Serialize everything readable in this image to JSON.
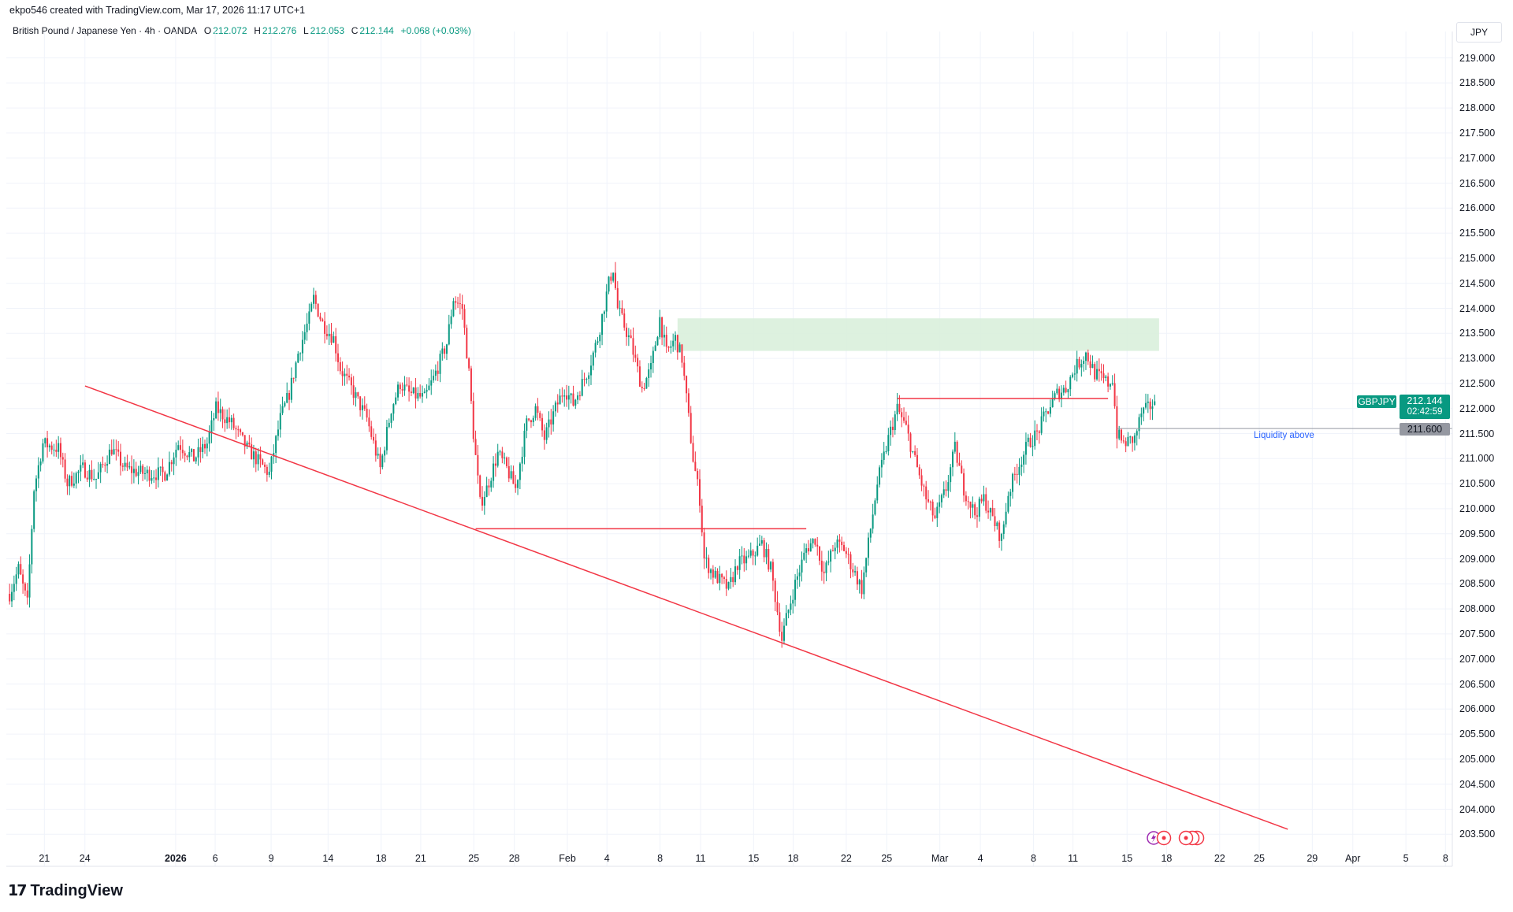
{
  "credit": "ekpo546 created with TradingView.com, Mar 17, 2026 11:17 UTC+1",
  "legend": {
    "symbol_desc": "British Pound / Japanese Yen · 4h · OANDA",
    "o_label": "O",
    "o": "212.072",
    "h_label": "H",
    "h": "212.276",
    "l_label": "L",
    "l": "212.053",
    "c_label": "C",
    "c": "212.144",
    "change": "+0.068 (+0.03%)"
  },
  "currency_button": "JPY",
  "price_axis": [
    "219.000",
    "218.500",
    "218.000",
    "217.500",
    "217.000",
    "216.500",
    "216.000",
    "215.500",
    "215.000",
    "214.500",
    "214.000",
    "213.500",
    "213.000",
    "212.500",
    "212.000",
    "211.500",
    "211.000",
    "210.500",
    "210.000",
    "209.500",
    "209.000",
    "208.500",
    "208.000",
    "207.500",
    "207.000",
    "206.500",
    "206.000",
    "205.500",
    "205.000",
    "204.500",
    "204.000",
    "203.500"
  ],
  "time_axis": [
    {
      "label": "21"
    },
    {
      "label": "24"
    },
    {
      "label": "2026",
      "bold": true
    },
    {
      "label": "6"
    },
    {
      "label": "9"
    },
    {
      "label": "14"
    },
    {
      "label": "18"
    },
    {
      "label": "21"
    },
    {
      "label": "25"
    },
    {
      "label": "28"
    },
    {
      "label": "Feb"
    },
    {
      "label": "4"
    },
    {
      "label": "8"
    },
    {
      "label": "11"
    },
    {
      "label": "15"
    },
    {
      "label": "18"
    },
    {
      "label": "22"
    },
    {
      "label": "25"
    },
    {
      "label": "Mar"
    },
    {
      "label": "4"
    },
    {
      "label": "8"
    },
    {
      "label": "11"
    },
    {
      "label": "15"
    },
    {
      "label": "18"
    },
    {
      "label": "22"
    },
    {
      "label": "25"
    },
    {
      "label": "29"
    },
    {
      "label": "Apr"
    },
    {
      "label": "5"
    },
    {
      "label": "8"
    }
  ],
  "symbol_badge": "GBPJPY",
  "last_price": "212.144",
  "countdown": "02:42:59",
  "liquidity_price": "211.600",
  "liquidity_text": "Liquidity above",
  "brand": "TradingView",
  "colors": {
    "up": "#089981",
    "down": "#f23645",
    "drawing": "#f23645",
    "zone": "#d9efdc",
    "liquidity_line": "#9598a1",
    "accent": "#2962ff"
  },
  "chart_data": {
    "type": "candlestick",
    "title": "British Pound / Japanese Yen · 4h · OANDA",
    "ylim": [
      203.3,
      219.3
    ],
    "bar_count": 517,
    "last_candle": {
      "o": 212.072,
      "h": 212.276,
      "l": 212.053,
      "c": 212.144
    },
    "close_anchors": [
      [
        0,
        208.3
      ],
      [
        4,
        208.8
      ],
      [
        8,
        208.1
      ],
      [
        11,
        210.4
      ],
      [
        15,
        211.3
      ],
      [
        22,
        211.2
      ],
      [
        26,
        210.5
      ],
      [
        33,
        210.8
      ],
      [
        39,
        210.6
      ],
      [
        46,
        211.2
      ],
      [
        52,
        210.8
      ],
      [
        61,
        210.7
      ],
      [
        70,
        210.7
      ],
      [
        76,
        211.3
      ],
      [
        83,
        211.0
      ],
      [
        89,
        211.3
      ],
      [
        93,
        212.0
      ],
      [
        100,
        211.7
      ],
      [
        107,
        211.2
      ],
      [
        113,
        210.9
      ],
      [
        117,
        210.7
      ],
      [
        122,
        211.8
      ],
      [
        126,
        212.3
      ],
      [
        130,
        213.1
      ],
      [
        135,
        213.8
      ],
      [
        137,
        214.2
      ],
      [
        141,
        213.7
      ],
      [
        146,
        213.4
      ],
      [
        149,
        212.8
      ],
      [
        154,
        212.4
      ],
      [
        161,
        211.8
      ],
      [
        167,
        210.8
      ],
      [
        172,
        212.0
      ],
      [
        176,
        212.5
      ],
      [
        180,
        212.3
      ],
      [
        187,
        212.2
      ],
      [
        191,
        212.6
      ],
      [
        197,
        213.3
      ],
      [
        200,
        214.2
      ],
      [
        204,
        214.0
      ],
      [
        207,
        212.7
      ],
      [
        209,
        211.5
      ],
      [
        212,
        210.1
      ],
      [
        215,
        210.4
      ],
      [
        220,
        211.1
      ],
      [
        224,
        210.8
      ],
      [
        228,
        210.4
      ],
      [
        233,
        211.7
      ],
      [
        237,
        212.0
      ],
      [
        241,
        211.4
      ],
      [
        246,
        212.0
      ],
      [
        250,
        212.4
      ],
      [
        254,
        212.1
      ],
      [
        261,
        212.8
      ],
      [
        265,
        213.4
      ],
      [
        270,
        214.5
      ],
      [
        272,
        214.8
      ],
      [
        274,
        214.0
      ],
      [
        280,
        213.3
      ],
      [
        285,
        212.4
      ],
      [
        289,
        212.8
      ],
      [
        293,
        213.8
      ],
      [
        296,
        213.1
      ],
      [
        300,
        213.4
      ],
      [
        303,
        213.0
      ],
      [
        305,
        212.2
      ],
      [
        308,
        211.0
      ],
      [
        311,
        210.2
      ],
      [
        313,
        209.0
      ],
      [
        317,
        208.7
      ],
      [
        324,
        208.4
      ],
      [
        328,
        208.9
      ],
      [
        333,
        209.0
      ],
      [
        339,
        209.3
      ],
      [
        343,
        208.8
      ],
      [
        348,
        207.4
      ],
      [
        350,
        207.8
      ],
      [
        354,
        208.5
      ],
      [
        359,
        209.2
      ],
      [
        363,
        209.4
      ],
      [
        367,
        208.7
      ],
      [
        372,
        209.3
      ],
      [
        376,
        209.2
      ],
      [
        380,
        208.8
      ],
      [
        384,
        208.4
      ],
      [
        387,
        209.3
      ],
      [
        391,
        210.5
      ],
      [
        396,
        211.4
      ],
      [
        400,
        212.0
      ],
      [
        404,
        211.6
      ],
      [
        409,
        210.8
      ],
      [
        413,
        210.2
      ],
      [
        417,
        209.8
      ],
      [
        422,
        210.4
      ],
      [
        426,
        211.2
      ],
      [
        430,
        210.4
      ],
      [
        435,
        209.9
      ],
      [
        439,
        210.2
      ],
      [
        443,
        209.8
      ],
      [
        447,
        209.4
      ],
      [
        450,
        210.3
      ],
      [
        454,
        210.8
      ],
      [
        459,
        211.3
      ],
      [
        463,
        211.5
      ],
      [
        467,
        211.9
      ],
      [
        472,
        212.3
      ],
      [
        476,
        212.4
      ],
      [
        480,
        212.8
      ],
      [
        485,
        213.1
      ],
      [
        489,
        212.7
      ],
      [
        495,
        212.5
      ],
      [
        497,
        212.6
      ],
      [
        499,
        211.5
      ],
      [
        502,
        211.3
      ],
      [
        507,
        211.4
      ],
      [
        510,
        211.9
      ],
      [
        513,
        212.0
      ],
      [
        516,
        212.144
      ]
    ],
    "annotations": [
      {
        "type": "trendline",
        "from": [
          34,
          212.45
        ],
        "to": [
          576,
          203.6
        ]
      },
      {
        "type": "hline",
        "price": 209.6,
        "from_bar": 210,
        "to_bar": 359
      },
      {
        "type": "hline",
        "price": 212.2,
        "from_bar": 400,
        "to_bar": 495
      },
      {
        "type": "zone",
        "top": 213.8,
        "bottom": 213.15,
        "from_bar": 301,
        "to_bar": 518
      },
      {
        "type": "hline",
        "price": 211.6,
        "from_bar": 499,
        "label": "Liquidity above"
      }
    ]
  }
}
